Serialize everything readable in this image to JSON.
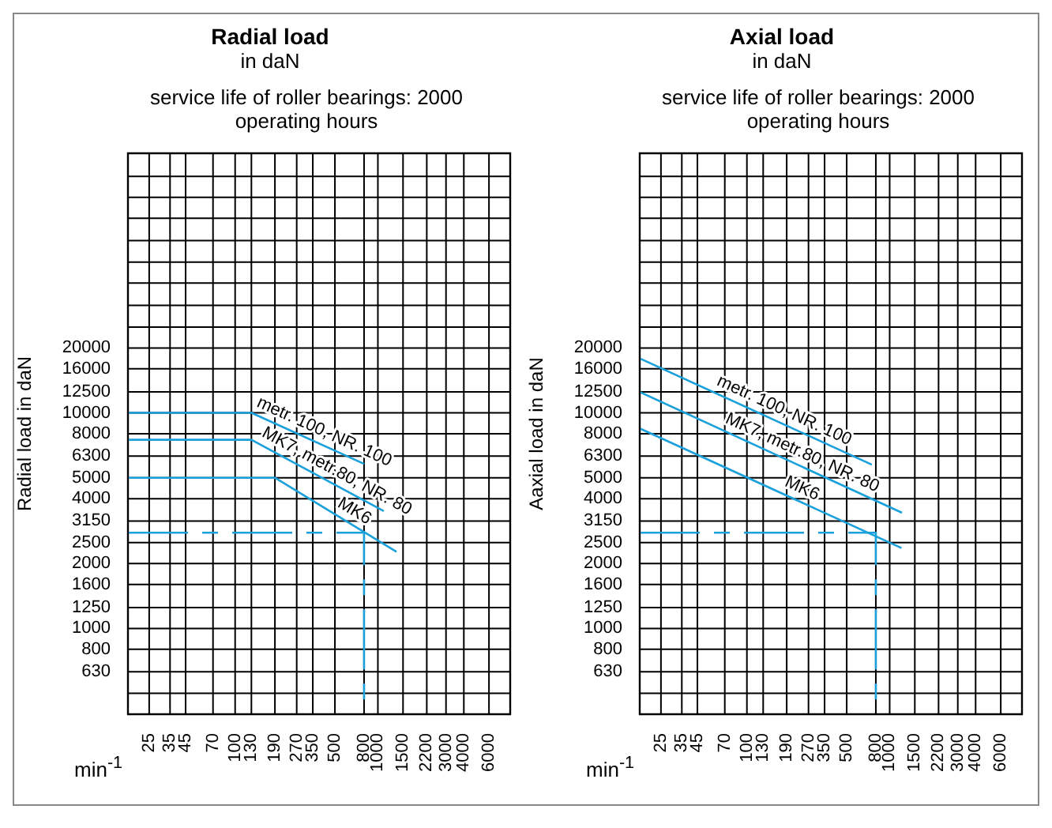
{
  "chart_data": [
    {
      "type": "line",
      "title": "Radial load",
      "subtitle": "in daN",
      "annotations": [
        "service life of roller bearings: 2000 operating hours"
      ],
      "xlabel": "min$^{-1}$",
      "ylabel": "Radial load in daN",
      "log": "xy",
      "grid": true,
      "marker": "none",
      "xlim": [
        17.75,
        8450
      ],
      "ylim": [
        400,
        160000
      ],
      "xticks": [
        25,
        35,
        45,
        70,
        100,
        130,
        190,
        270,
        350,
        500,
        800,
        1000,
        1500,
        2200,
        3000,
        4000,
        6000
      ],
      "yticks": [
        {
          "value": 500,
          "label": null
        },
        630,
        800,
        1000,
        1250,
        1600,
        2000,
        2500,
        3150,
        4000,
        5000,
        6300,
        8000,
        10000,
        12500,
        16000,
        20000,
        {
          "value": 25000,
          "label": null
        },
        {
          "value": 31500,
          "label": null
        },
        {
          "value": 40000,
          "label": null
        },
        {
          "value": 50000,
          "label": null
        },
        {
          "value": 63000,
          "label": null
        },
        {
          "value": 80000,
          "label": null
        },
        {
          "value": 100000,
          "label": null
        },
        {
          "value": 125000,
          "label": null
        }
      ],
      "series": [
        {
          "name": "metr. 100, NR. 100",
          "color": "#1aa0da",
          "x": [
            17.75,
            130,
            800
          ],
          "values": [
            10000,
            10000,
            5800
          ]
        },
        {
          "name": "MK7, metr.80, NR. 80",
          "color": "#1aa0da",
          "x": [
            17.75,
            130,
            1100
          ],
          "values": [
            7500,
            7500,
            3500
          ]
        },
        {
          "name": "MK6",
          "color": "#1aa0da",
          "x": [
            17.75,
            190,
            1350
          ],
          "values": [
            5000,
            5000,
            2270
          ]
        },
        {
          "color": "#1aa0da",
          "line_style": "dashed",
          "x": [
            17.75,
            800,
            800
          ],
          "values": [
            2780,
            2780,
            400
          ]
        }
      ]
    },
    {
      "type": "line",
      "title": "Axial load",
      "subtitle": "in daN",
      "annotations": [
        "service life of roller bearings: 2000 operating hours"
      ],
      "xlabel": "min$^{-1}$",
      "ylabel": "Aaxial load in daN",
      "log": "xy",
      "grid": true,
      "marker": "none",
      "xlim": [
        17.75,
        8450
      ],
      "ylim": [
        400,
        160000
      ],
      "xticks": [
        25,
        35,
        45,
        70,
        100,
        130,
        190,
        270,
        350,
        500,
        800,
        1000,
        1500,
        2200,
        3000,
        4000,
        6000
      ],
      "yticks": [
        {
          "value": 500,
          "label": null
        },
        630,
        800,
        1000,
        1250,
        1600,
        2000,
        2500,
        3150,
        4000,
        5000,
        6300,
        8000,
        10000,
        12500,
        16000,
        20000,
        {
          "value": 25000,
          "label": null
        },
        {
          "value": 31500,
          "label": null
        },
        {
          "value": 40000,
          "label": null
        },
        {
          "value": 50000,
          "label": null
        },
        {
          "value": 63000,
          "label": null
        },
        {
          "value": 80000,
          "label": null
        },
        {
          "value": 100000,
          "label": null
        },
        {
          "value": 125000,
          "label": null
        }
      ],
      "series": [
        {
          "name": "metr. 100, NR. 100",
          "color": "#1aa0da",
          "x": [
            17.75,
            750
          ],
          "values": [
            17900,
            5750
          ]
        },
        {
          "name": "MK7, metr.80, NR. 80",
          "color": "#1aa0da",
          "x": [
            17.75,
            1220
          ],
          "values": [
            12500,
            3440
          ]
        },
        {
          "name": "MK6",
          "color": "#1aa0da",
          "x": [
            17.75,
            1210
          ],
          "values": [
            8470,
            2360
          ]
        },
        {
          "color": "#1aa0da",
          "line_style": "dashed",
          "x": [
            17.75,
            800,
            800
          ],
          "values": [
            2780,
            2780,
            400
          ]
        }
      ]
    }
  ]
}
